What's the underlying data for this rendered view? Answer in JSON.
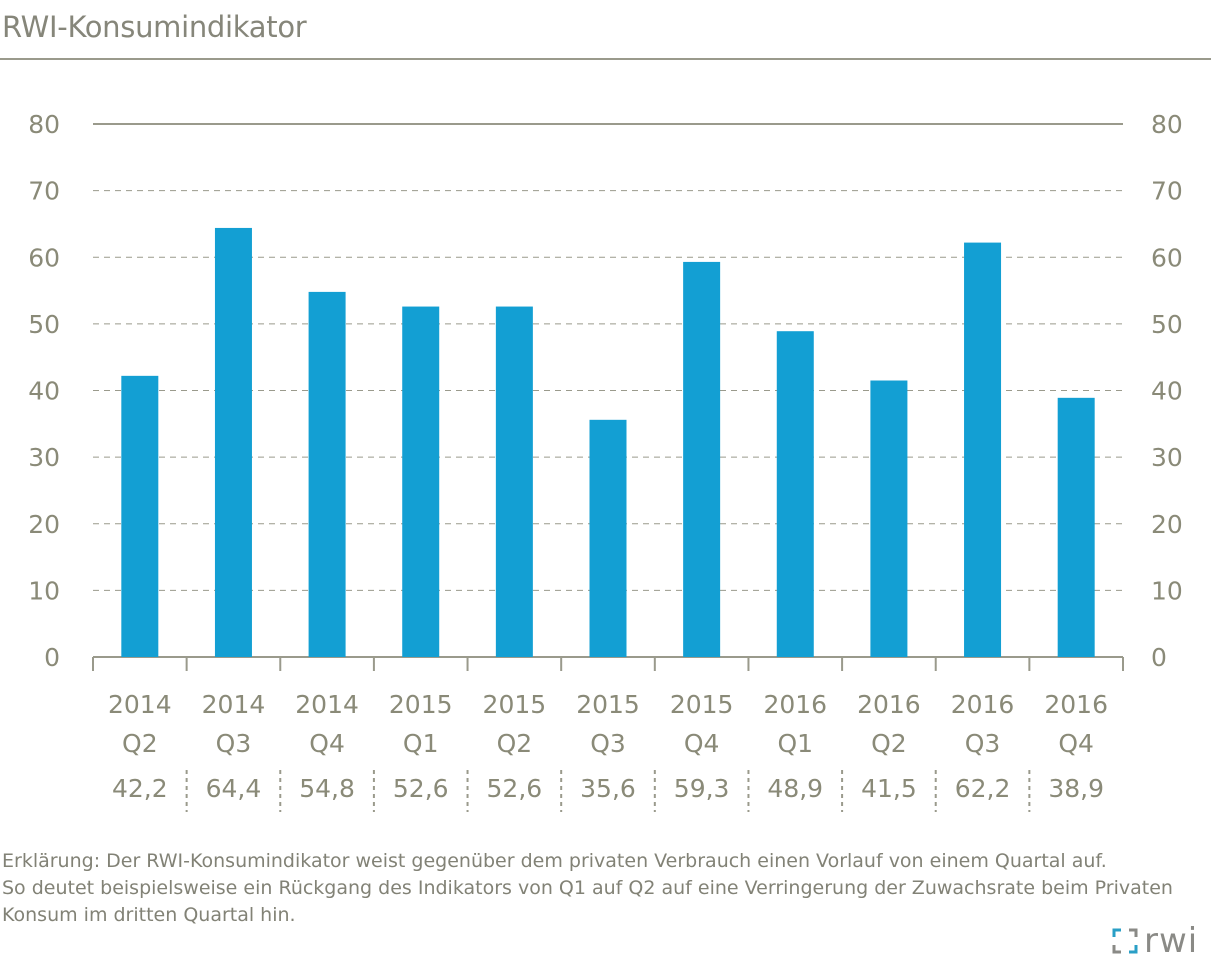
{
  "title": "RWI-Konsumindikator",
  "colors": {
    "bar": "#139fd3",
    "text": "#8a8a78",
    "grid": "#9a9a8c",
    "logo_accent": "#2a9fc6"
  },
  "chart_data": {
    "type": "bar",
    "categories": [
      {
        "year": "2014",
        "quarter": "Q2"
      },
      {
        "year": "2014",
        "quarter": "Q3"
      },
      {
        "year": "2014",
        "quarter": "Q4"
      },
      {
        "year": "2015",
        "quarter": "Q1"
      },
      {
        "year": "2015",
        "quarter": "Q2"
      },
      {
        "year": "2015",
        "quarter": "Q3"
      },
      {
        "year": "2015",
        "quarter": "Q4"
      },
      {
        "year": "2016",
        "quarter": "Q1"
      },
      {
        "year": "2016",
        "quarter": "Q2"
      },
      {
        "year": "2016",
        "quarter": "Q3"
      },
      {
        "year": "2016",
        "quarter": "Q4"
      }
    ],
    "values": [
      42.2,
      64.4,
      54.8,
      52.6,
      52.6,
      35.6,
      59.3,
      48.9,
      41.5,
      62.2,
      38.9
    ],
    "value_labels": [
      "42,2",
      "64,4",
      "54,8",
      "52,6",
      "52,6",
      "35,6",
      "59,3",
      "48,9",
      "41,5",
      "62,2",
      "38,9"
    ],
    "ylim": [
      0,
      80
    ],
    "yticks": [
      "0",
      "10",
      "20",
      "30",
      "40",
      "50",
      "60",
      "70",
      "80"
    ],
    "grid": true,
    "secondary_axis": true
  },
  "footnote": {
    "lines": [
      "Erklärung: Der RWI-Konsumindikator weist gegenüber dem privaten Verbrauch einen Vorlauf von einem Quartal auf.",
      "So deutet beispielsweise ein Rückgang des Indikators von Q1 auf Q2 auf eine Verringerung der Zuwachsrate beim Privaten",
      "Konsum im dritten Quartal hin."
    ]
  },
  "logo": {
    "text": "rwi"
  }
}
